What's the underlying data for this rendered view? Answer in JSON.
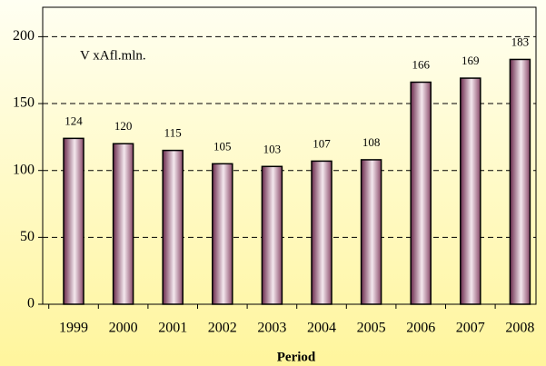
{
  "chart_data": {
    "type": "bar",
    "annotation": "V xAfl.mln.",
    "x_label": "Period",
    "categories": [
      "1999",
      "2000",
      "2001",
      "2002",
      "2003",
      "2004",
      "2005",
      "2006",
      "2007",
      "2008"
    ],
    "values": [
      124,
      120,
      115,
      105,
      103,
      107,
      108,
      166,
      169,
      183
    ],
    "color": "#7a3a5a",
    "ylim": [
      0,
      222
    ],
    "yticks": [
      0,
      50,
      100,
      150,
      200
    ],
    "grid": true
  }
}
